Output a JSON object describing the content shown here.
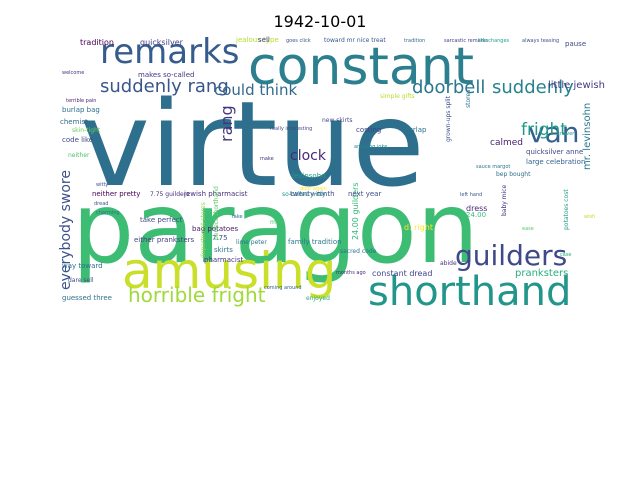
{
  "chart_data": {
    "type": "wordcloud",
    "title": "1942-10-01",
    "words": [
      {
        "text": "virtue",
        "color": "#2e6f8e"
      },
      {
        "text": "paragon",
        "color": "#3dbc74"
      },
      {
        "text": "constant",
        "color": "#2c7f8e"
      },
      {
        "text": "amusing",
        "color": "#c9df2a"
      },
      {
        "text": "shorthand",
        "color": "#23968b"
      },
      {
        "text": "remarks",
        "color": "#365c8d"
      },
      {
        "text": "guilders",
        "color": "#3f4889"
      },
      {
        "text": "horrible fright",
        "color": "#9fda3a"
      },
      {
        "text": "van",
        "color": "#35608d"
      },
      {
        "text": "suddenly rang",
        "color": "#39568c"
      },
      {
        "text": "suddenly",
        "color": "#26828e"
      },
      {
        "text": "doorbell",
        "color": "#2a778e"
      },
      {
        "text": "could think",
        "color": "#31688e"
      },
      {
        "text": "fright",
        "color": "#1f9a8a"
      },
      {
        "text": "everybody swore",
        "color": "#3b528b"
      },
      {
        "text": "clock",
        "color": "#482878"
      },
      {
        "text": "rang",
        "color": "#46337f"
      },
      {
        "text": "mr. levinsohn",
        "color": "#2a788e"
      },
      {
        "text": "little jewish",
        "color": "#443a83"
      },
      {
        "text": "pranksters",
        "color": "#29af7f"
      },
      {
        "text": "tradition",
        "color": "#440154"
      },
      {
        "text": "quicksilver",
        "color": "#433e85"
      },
      {
        "text": "jealous type",
        "color": "#b8de29"
      },
      {
        "text": "sell",
        "color": "#414487"
      },
      {
        "text": "goes click",
        "color": "#3a548c"
      },
      {
        "text": "toward mr nice treat",
        "color": "#38598c"
      },
      {
        "text": "tradition",
        "color": "#2f6c8e"
      },
      {
        "text": "sarcastic remarks",
        "color": "#414487"
      },
      {
        "text": "like changes",
        "color": "#20a386"
      },
      {
        "text": "always teasing",
        "color": "#3b528b"
      },
      {
        "text": "pause",
        "color": "#404688"
      },
      {
        "text": "welcome",
        "color": "#46327e"
      },
      {
        "text": "makes so-called",
        "color": "#463480"
      },
      {
        "text": "terrible pain",
        "color": "#481f70"
      },
      {
        "text": "burlap bag",
        "color": "#2d708e"
      },
      {
        "text": "chemist",
        "color": "#31688e"
      },
      {
        "text": "skin-tight",
        "color": "#6ccd5a"
      },
      {
        "text": "code like",
        "color": "#3e4989"
      },
      {
        "text": "neither",
        "color": "#4cc26c"
      },
      {
        "text": "neither pretty",
        "color": "#440154"
      },
      {
        "text": "7.75 guilders",
        "color": "#472d7b"
      },
      {
        "text": "jewish pharmacist",
        "color": "#46307e"
      },
      {
        "text": "so-called witty",
        "color": "#21918c"
      },
      {
        "text": "take perfect",
        "color": "#3e4a89"
      },
      {
        "text": "bag potatoes",
        "color": "#481769"
      },
      {
        "text": "7.75",
        "color": "#3b528b"
      },
      {
        "text": "skirts",
        "color": "#2a778e"
      },
      {
        "text": "pharmacist",
        "color": "#443983"
      },
      {
        "text": "levinsohn",
        "color": "#1e9c89"
      },
      {
        "text": "twenty-ninth",
        "color": "#3c4f8a"
      },
      {
        "text": "new skirts",
        "color": "#3d4e8a"
      },
      {
        "text": "costing",
        "color": "#414287"
      },
      {
        "text": "burlap",
        "color": "#2c738e"
      },
      {
        "text": "calmed",
        "color": "#482173"
      },
      {
        "text": "dress",
        "color": "#472a7a"
      },
      {
        "text": "24.00",
        "color": "#3dbc74"
      },
      {
        "text": "24.00 guilders",
        "color": "#35b779"
      },
      {
        "text": "d. right",
        "color": "#fde725"
      },
      {
        "text": "next year",
        "color": "#3e4c8a"
      },
      {
        "text": "quicksilver anne",
        "color": "#3e4989"
      },
      {
        "text": "large celebration",
        "color": "#33638d"
      },
      {
        "text": "bep bought",
        "color": "#2e6e8e"
      },
      {
        "text": "either pranksters",
        "color": "#433d84"
      },
      {
        "text": "department stores",
        "color": "#8bd646"
      },
      {
        "text": "family tradition",
        "color": "#2a788e"
      },
      {
        "text": "constant dread",
        "color": "#404588"
      },
      {
        "text": "way toward",
        "color": "#2c718e"
      },
      {
        "text": "dare sell",
        "color": "#3e4c8a"
      },
      {
        "text": "guessed three",
        "color": "#2d718e"
      },
      {
        "text": "enjoyed",
        "color": "#22a884"
      },
      {
        "text": "potatoes cost",
        "color": "#1f9e89"
      },
      {
        "text": "perfect shorthand",
        "color": "#58c765"
      },
      {
        "text": "really interesting",
        "color": "#3e4a89"
      },
      {
        "text": "simple gifts",
        "color": "#b5de2b"
      },
      {
        "text": "grown-ups split",
        "color": "#3b528b"
      },
      {
        "text": "stores",
        "color": "#2a788e"
      },
      {
        "text": "baby mice",
        "color": "#463480"
      },
      {
        "text": "sacred code",
        "color": "#2c738e"
      },
      {
        "text": "fake",
        "color": "#306a8e"
      },
      {
        "text": "months ago",
        "color": "#482677"
      },
      {
        "text": "coming around",
        "color": "#34608d"
      },
      {
        "text": "left hand",
        "color": "#39558c"
      },
      {
        "text": "abide",
        "color": "#46327e"
      },
      {
        "text": "never",
        "color": "#1f968b"
      },
      {
        "text": "mice",
        "color": "#4ac16d"
      },
      {
        "text": "door again",
        "color": "#fde725"
      },
      {
        "text": "sauce margot",
        "color": "#2a788e"
      },
      {
        "text": "amusing joke",
        "color": "#24868e"
      },
      {
        "text": "witty",
        "color": "#3e4a89"
      },
      {
        "text": "dread",
        "color": "#3b528b"
      },
      {
        "text": "charming",
        "color": "#2c718e"
      },
      {
        "text": "ease",
        "color": "#5ec962"
      },
      {
        "text": "make",
        "color": "#46337f"
      },
      {
        "text": "wish",
        "color": "#bddf26"
      },
      {
        "text": "case",
        "color": "#25ac82"
      },
      {
        "text": "lime peter",
        "color": "#2b758e"
      }
    ]
  }
}
